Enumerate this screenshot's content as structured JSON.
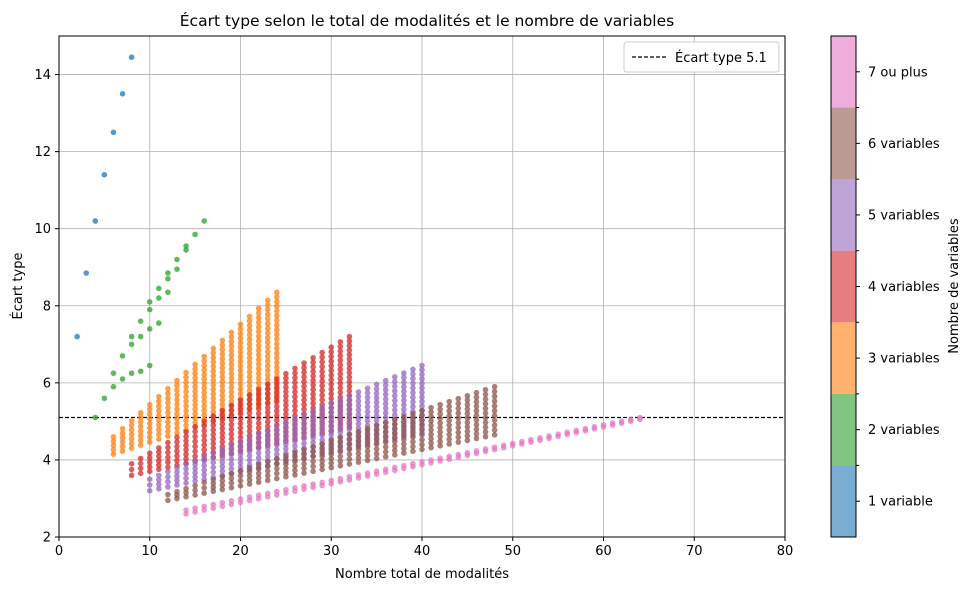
{
  "chart_data": {
    "type": "scatter",
    "title": "Écart type selon le total de modalités et le nombre de variables",
    "xlabel": "Nombre total de modalités",
    "ylabel": "Écart type",
    "xlim": [
      0,
      80
    ],
    "ylim": [
      2,
      15
    ],
    "xticks": [
      0,
      10,
      20,
      30,
      40,
      50,
      60,
      70,
      80
    ],
    "yticks": [
      2,
      4,
      6,
      8,
      10,
      12,
      14
    ],
    "grid": true,
    "reference_line": {
      "y": 5.1,
      "label": "Écart type 5.1",
      "style": "dashed",
      "color": "#000000"
    },
    "legend": {
      "placement": "top-right",
      "entries": [
        "Écart type 5.1"
      ]
    },
    "colorbar": {
      "label": "Nombre de variables",
      "placement": "right",
      "categories": [
        {
          "label": "1 variable",
          "color": "#1f77b4"
        },
        {
          "label": "2 variables",
          "color": "#2ca02c"
        },
        {
          "label": "3 variables",
          "color": "#ff7f0e"
        },
        {
          "label": "4 variables",
          "color": "#d62728"
        },
        {
          "label": "5 variables",
          "color": "#9467bd"
        },
        {
          "label": "6 variables",
          "color": "#8c564b"
        },
        {
          "label": "7 ou plus",
          "color": "#e377c2"
        }
      ]
    },
    "series": [
      {
        "name": "1 variable",
        "color": "#1f77b4",
        "points": [
          [
            2,
            7.2
          ],
          [
            3,
            8.85
          ],
          [
            4,
            10.2
          ],
          [
            5,
            11.4
          ],
          [
            6,
            12.5
          ],
          [
            7,
            13.5
          ],
          [
            8,
            14.45
          ]
        ]
      },
      {
        "name": "2 variables",
        "color": "#2ca02c",
        "points": [
          [
            4,
            5.1
          ],
          [
            5,
            5.6
          ],
          [
            6,
            5.9
          ],
          [
            6,
            6.25
          ],
          [
            7,
            6.1
          ],
          [
            7,
            6.7
          ],
          [
            8,
            6.25
          ],
          [
            8,
            7.0
          ],
          [
            8,
            7.2
          ],
          [
            9,
            6.3
          ],
          [
            9,
            7.2
          ],
          [
            9,
            7.6
          ],
          [
            10,
            6.45
          ],
          [
            10,
            7.4
          ],
          [
            10,
            7.9
          ],
          [
            10,
            8.1
          ],
          [
            11,
            7.55
          ],
          [
            11,
            8.2
          ],
          [
            11,
            8.45
          ],
          [
            12,
            8.35
          ],
          [
            12,
            8.7
          ],
          [
            12,
            8.85
          ],
          [
            13,
            8.95
          ],
          [
            13,
            9.2
          ],
          [
            14,
            9.45
          ],
          [
            14,
            9.55
          ],
          [
            15,
            9.85
          ],
          [
            16,
            10.2
          ]
        ]
      },
      {
        "name": "3 variables",
        "color": "#ff7f0e",
        "series_range": {
          "x_from": 6,
          "x_to": 24,
          "y_low_start": 4.15,
          "y_low_end": 5.55,
          "y_high_start": 4.6,
          "y_high_end": 8.35
        }
      },
      {
        "name": "4 variables",
        "color": "#d62728",
        "series_range": {
          "x_from": 8,
          "x_to": 32,
          "y_low_start": 3.6,
          "y_low_end": 4.85,
          "y_high_start": 3.9,
          "y_high_end": 7.2
        }
      },
      {
        "name": "5 variables",
        "color": "#9467bd",
        "series_range": {
          "x_from": 10,
          "x_to": 40,
          "y_low_start": 3.2,
          "y_low_end": 4.7,
          "y_high_start": 3.5,
          "y_high_end": 6.45
        }
      },
      {
        "name": "6 variables",
        "color": "#8c564b",
        "series_range": {
          "x_from": 12,
          "x_to": 48,
          "y_low_start": 2.95,
          "y_low_end": 4.65,
          "y_high_start": 3.1,
          "y_high_end": 5.9
        }
      },
      {
        "name": "7 ou plus",
        "color": "#e377c2",
        "series_range": {
          "x_from": 14,
          "x_to": 64,
          "y_low_start": 2.6,
          "y_low_end": 5.05,
          "y_high_start": 2.7,
          "y_high_end": 5.1
        }
      }
    ]
  }
}
